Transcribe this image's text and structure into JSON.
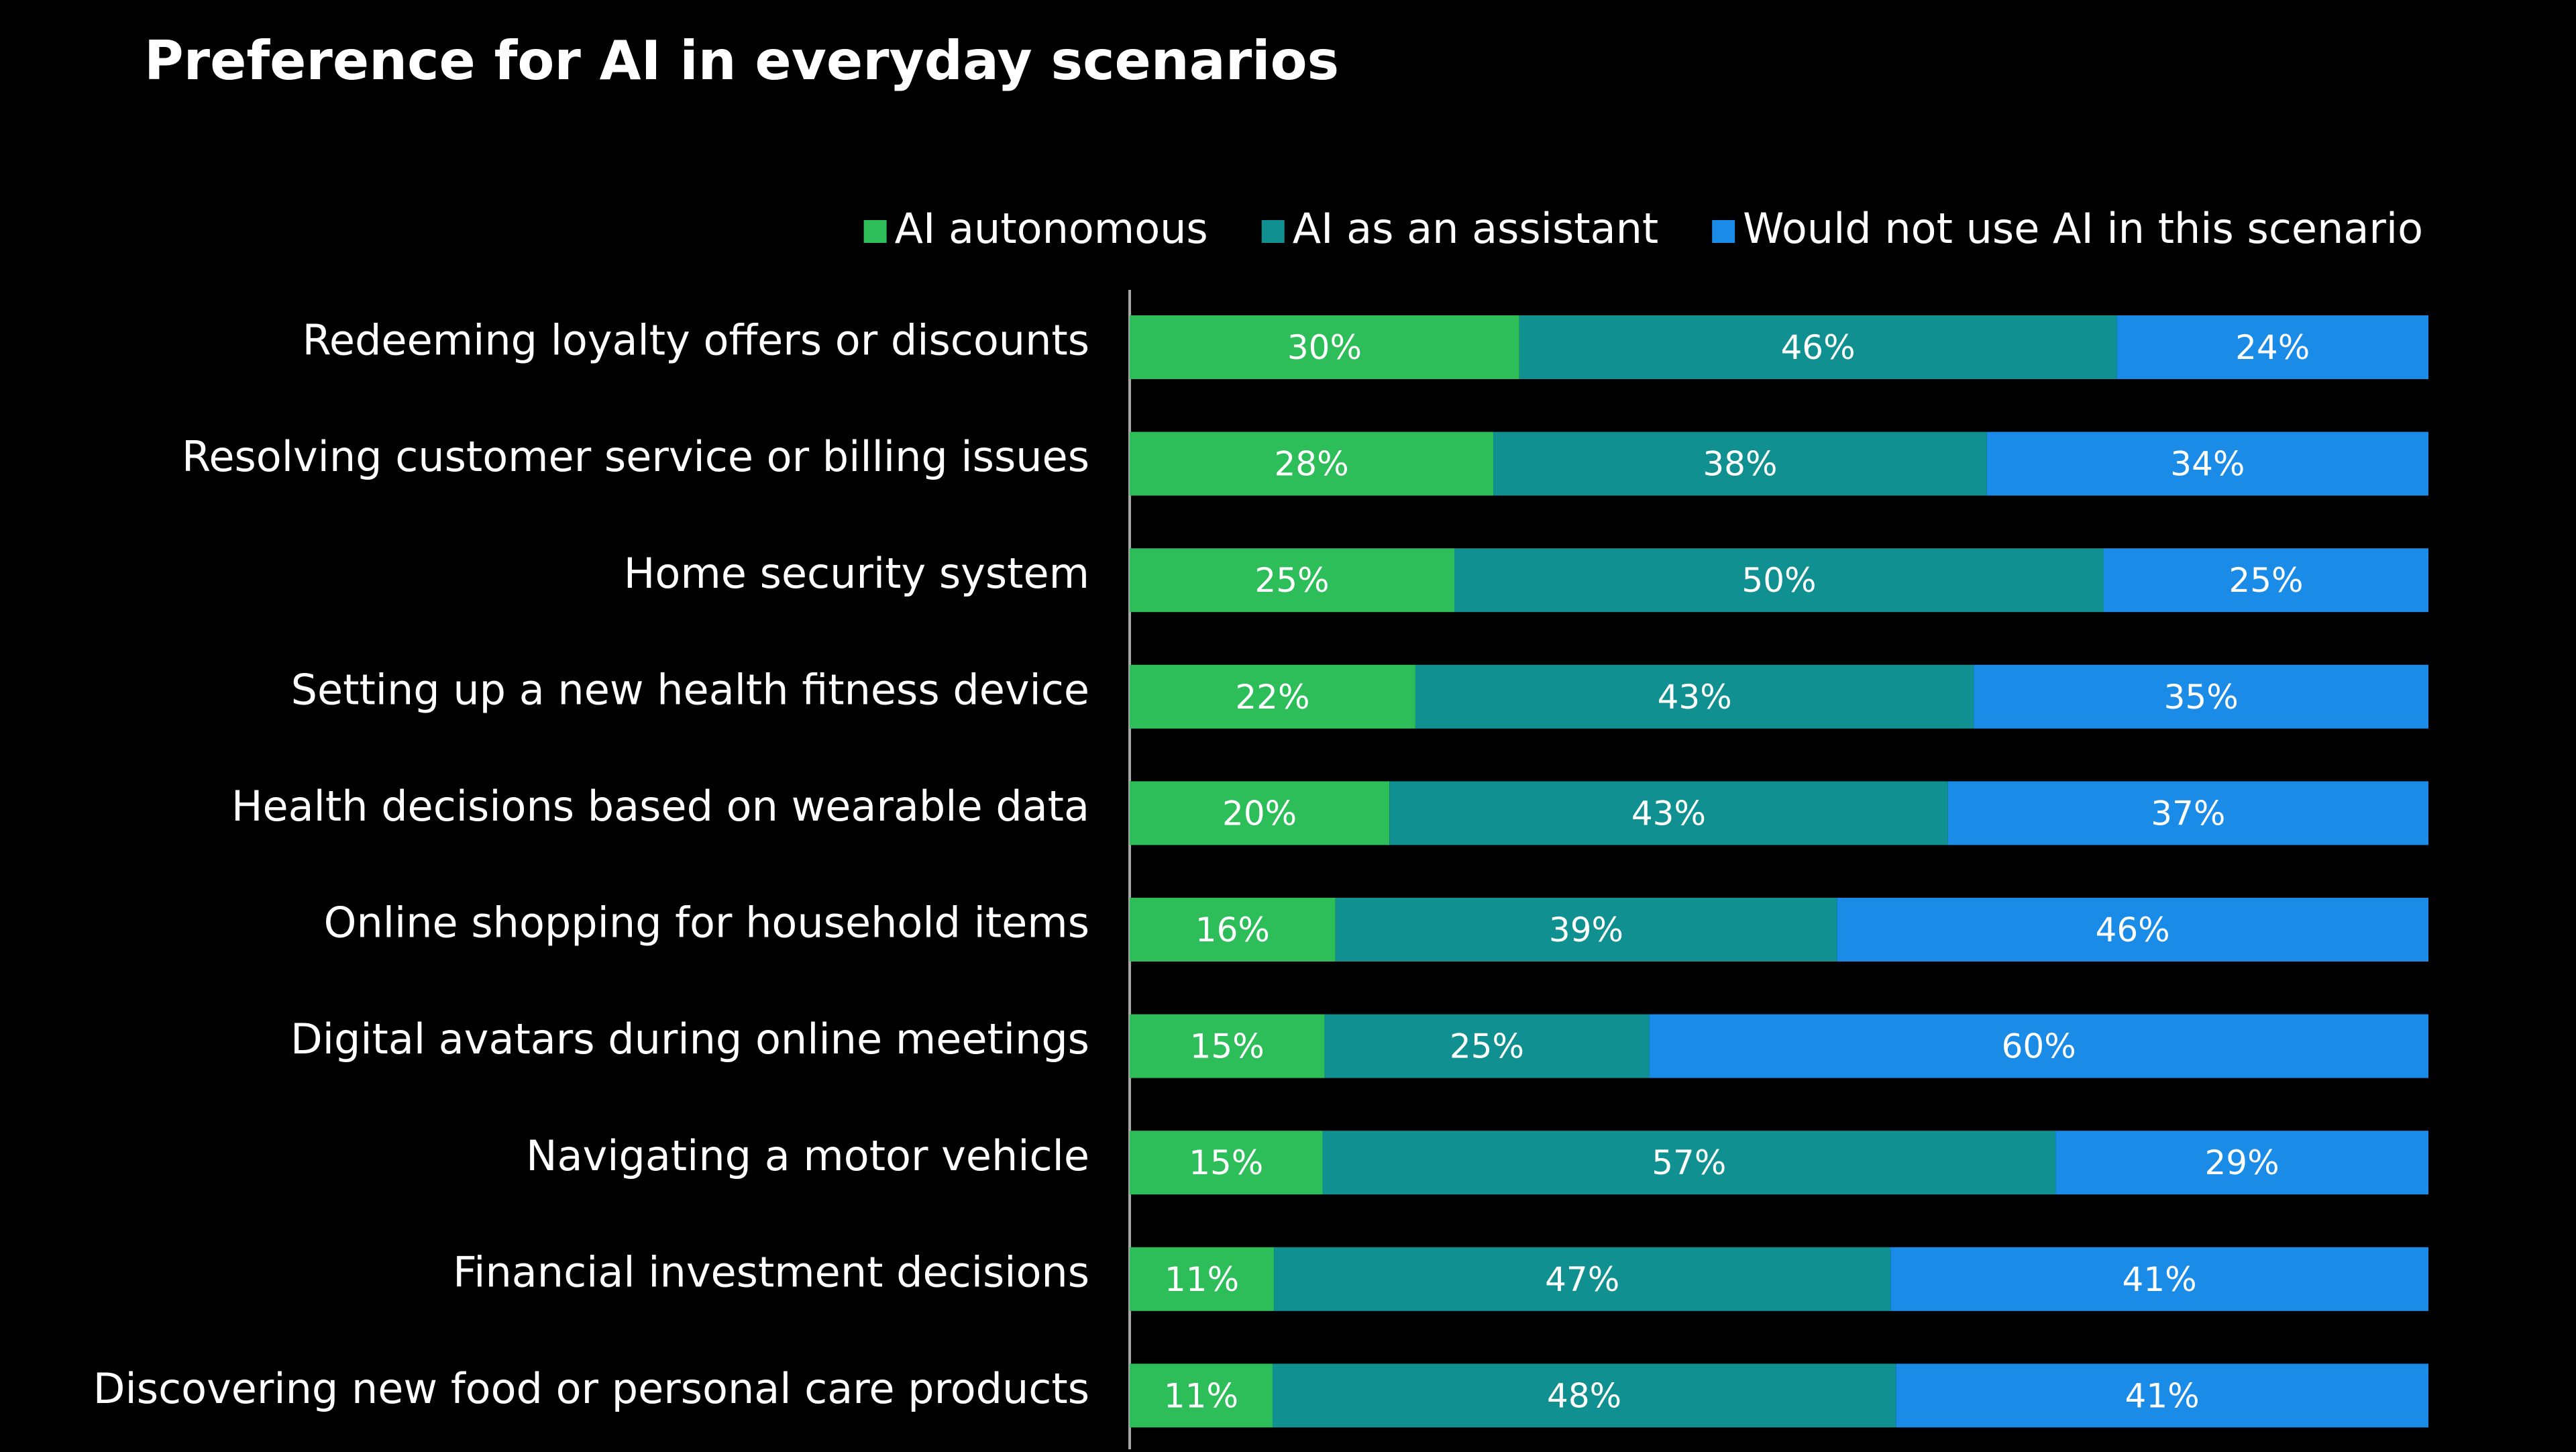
{
  "chart_data": {
    "type": "bar",
    "orientation": "horizontal",
    "stacked": true,
    "title": "Preference for AI in everyday scenarios",
    "categories": [
      "Redeeming loyalty offers or discounts",
      "Resolving customer service or billing issues",
      "Home security system",
      "Setting up a new health fitness device",
      "Health decisions based on wearable data",
      "Online shopping for household items",
      "Digital avatars during online meetings",
      "Navigating a motor vehicle",
      "Financial investment decisions",
      "Discovering new food or personal care products"
    ],
    "series": [
      {
        "name": "AI autonomous",
        "color": "#2dbe5a",
        "values": [
          30,
          28,
          25,
          22,
          20,
          16,
          15,
          15,
          11,
          11
        ],
        "labels": [
          "30%",
          "28%",
          "25%",
          "22%",
          "20%",
          "16%",
          "15%",
          "15%",
          "11%",
          "11%"
        ]
      },
      {
        "name": "AI as an assistant",
        "color": "#109090",
        "values": [
          46,
          38,
          50,
          43,
          43,
          39,
          25,
          57,
          47,
          48
        ],
        "labels": [
          "46%",
          "38%",
          "50%",
          "43%",
          "43%",
          "39%",
          "25%",
          "57%",
          "47%",
          "48%"
        ]
      },
      {
        "name": "Would not use AI in this scenario",
        "color": "#1a8be6",
        "values": [
          24,
          34,
          25,
          35,
          37,
          46,
          60,
          29,
          41,
          41
        ],
        "labels": [
          "24%",
          "34%",
          "25%",
          "35%",
          "37%",
          "46%",
          "60%",
          "29%",
          "41%",
          "41%"
        ]
      }
    ],
    "legend_position": "top-right",
    "grid": false
  },
  "colors": {
    "background": "#000000",
    "text": "#ffffff",
    "axis": "#a6a6a6"
  }
}
